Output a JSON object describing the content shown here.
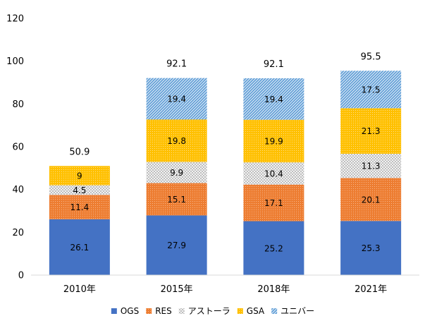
{
  "chart_data": {
    "type": "bar",
    "stacked": true,
    "categories": [
      "2010年",
      "2015年",
      "2018年",
      "2021年"
    ],
    "ylim": [
      0,
      120
    ],
    "yticks": [
      0,
      20,
      40,
      60,
      80,
      100,
      120
    ],
    "grid": false,
    "legend_position": "bottom",
    "series": [
      {
        "name": "OGS",
        "values": [
          26.1,
          27.9,
          25.2,
          25.3
        ],
        "labels": [
          "26.1",
          "27.9",
          "25.2",
          "25.3"
        ],
        "color": "#4472C4",
        "pattern": "solid"
      },
      {
        "name": "RES",
        "values": [
          11.4,
          15.1,
          17.1,
          20.1
        ],
        "labels": [
          "11.4",
          "15.1",
          "17.1",
          "20.1"
        ],
        "color": "#ED7D31",
        "pattern": "dots"
      },
      {
        "name": "アストーラ",
        "values": [
          4.5,
          9.9,
          10.4,
          11.3
        ],
        "labels": [
          "4.5",
          "9.9",
          "10.4",
          "11.3"
        ],
        "color": "#A5A5A5",
        "pattern": "checker"
      },
      {
        "name": "GSA",
        "values": [
          9,
          19.8,
          19.9,
          21.3
        ],
        "labels": [
          "9",
          "19.8",
          "19.9",
          "21.3"
        ],
        "color": "#FFC000",
        "pattern": "dots"
      },
      {
        "name": "ユニバー",
        "values": [
          0,
          19.4,
          19.4,
          17.5
        ],
        "labels": [
          "",
          "19.4",
          "19.4",
          "17.5"
        ],
        "color": "#5B9BD5",
        "pattern": "diagonal"
      }
    ],
    "totals": [
      "50.9",
      "92.1",
      "92.1",
      "95.5"
    ]
  }
}
